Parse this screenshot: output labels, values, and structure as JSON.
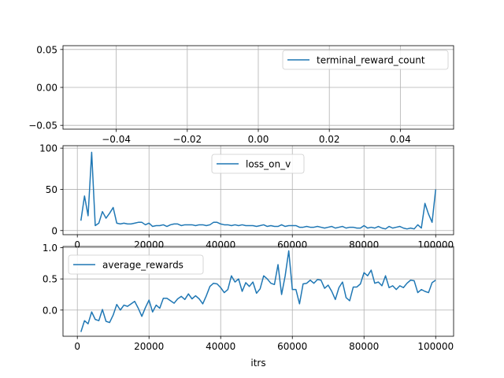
{
  "chart_data": [
    {
      "type": "line",
      "title": "",
      "xlabel": "",
      "ylabel": "",
      "xlim": [
        -0.055,
        0.055
      ],
      "ylim": [
        -0.055,
        0.055
      ],
      "xticks": [
        -0.04,
        -0.02,
        0.0,
        0.02,
        0.04
      ],
      "xtick_labels": [
        "−0.04",
        "−0.02",
        "0.00",
        "0.02",
        "0.04"
      ],
      "yticks": [
        -0.05,
        0.0,
        0.05
      ],
      "ytick_labels": [
        "−0.05",
        "0.00",
        "0.05"
      ],
      "grid": true,
      "legend_position": "upper right",
      "series": [
        {
          "name": "terminal_reward_count",
          "color": "#1f77b4",
          "x": [],
          "y": []
        }
      ]
    },
    {
      "type": "line",
      "title": "",
      "xlabel": "",
      "ylabel": "",
      "xlim": [
        -4000,
        105000
      ],
      "ylim": [
        -5,
        103
      ],
      "xticks": [
        0,
        20000,
        40000,
        60000,
        80000,
        100000
      ],
      "xtick_labels": [
        "0",
        "20000",
        "40000",
        "60000",
        "80000",
        "100000"
      ],
      "yticks": [
        0,
        50,
        100
      ],
      "ytick_labels": [
        "0",
        "50",
        "100"
      ],
      "grid": true,
      "legend_position": "upper center",
      "series": [
        {
          "name": "loss_on_v",
          "color": "#1f77b4",
          "x": [
            1000,
            2000,
            3000,
            4000,
            5000,
            6000,
            7000,
            8000,
            9000,
            10000,
            11000,
            12000,
            13000,
            14000,
            15000,
            16000,
            17000,
            18000,
            19000,
            20000,
            21000,
            22000,
            23000,
            24000,
            25000,
            26000,
            27000,
            28000,
            29000,
            30000,
            31000,
            32000,
            33000,
            34000,
            35000,
            36000,
            37000,
            38000,
            39000,
            40000,
            41000,
            42000,
            43000,
            44000,
            45000,
            46000,
            47000,
            48000,
            49000,
            50000,
            51000,
            52000,
            53000,
            54000,
            55000,
            56000,
            57000,
            58000,
            59000,
            60000,
            61000,
            62000,
            63000,
            64000,
            65000,
            66000,
            67000,
            68000,
            69000,
            70000,
            71000,
            72000,
            73000,
            74000,
            75000,
            76000,
            77000,
            78000,
            79000,
            80000,
            81000,
            82000,
            83000,
            84000,
            85000,
            86000,
            87000,
            88000,
            89000,
            90000,
            91000,
            92000,
            93000,
            94000,
            95000,
            96000,
            97000,
            98000,
            99000,
            100000
          ],
          "y": [
            12,
            42,
            18,
            95,
            6,
            9,
            23,
            15,
            21,
            28,
            9,
            8,
            9,
            8,
            8,
            9,
            10,
            10,
            7,
            9,
            5,
            6,
            6,
            7,
            5,
            7,
            8,
            8,
            6,
            7,
            7,
            7,
            6,
            7,
            7,
            6,
            7,
            10,
            10,
            8,
            7,
            7,
            6,
            7,
            6,
            7,
            6,
            6,
            6,
            5,
            6,
            7,
            5,
            6,
            5,
            5,
            7,
            5,
            6,
            6,
            6,
            4,
            4,
            5,
            4,
            4,
            5,
            4,
            3,
            4,
            5,
            3,
            4,
            5,
            3,
            4,
            4,
            3,
            3,
            6,
            3,
            4,
            3,
            5,
            3,
            2,
            5,
            3,
            4,
            5,
            3,
            2,
            3,
            2,
            7,
            3,
            33,
            20,
            10,
            50
          ]
        }
      ]
    },
    {
      "type": "line",
      "title": "",
      "xlabel": "itrs",
      "ylabel": "",
      "xlim": [
        -4000,
        105000
      ],
      "ylim": [
        -0.42,
        1.02
      ],
      "xticks": [
        0,
        20000,
        40000,
        60000,
        80000,
        100000
      ],
      "xtick_labels": [
        "0",
        "20000",
        "40000",
        "60000",
        "80000",
        "100000"
      ],
      "yticks": [
        0.0,
        0.5,
        1.0
      ],
      "ytick_labels": [
        "0.0",
        "0.5",
        "1.0"
      ],
      "grid": true,
      "legend_position": "upper left",
      "series": [
        {
          "name": "average_rewards",
          "color": "#1f77b4",
          "x": [
            1000,
            2000,
            3000,
            4000,
            5000,
            6000,
            7000,
            8000,
            9000,
            10000,
            11000,
            12000,
            13000,
            14000,
            15000,
            16000,
            17000,
            18000,
            19000,
            20000,
            21000,
            22000,
            23000,
            24000,
            25000,
            26000,
            27000,
            28000,
            29000,
            30000,
            31000,
            32000,
            33000,
            34000,
            35000,
            36000,
            37000,
            38000,
            39000,
            40000,
            41000,
            42000,
            43000,
            44000,
            45000,
            46000,
            47000,
            48000,
            49000,
            50000,
            51000,
            52000,
            53000,
            54000,
            55000,
            56000,
            57000,
            58000,
            59000,
            60000,
            61000,
            62000,
            63000,
            64000,
            65000,
            66000,
            67000,
            68000,
            69000,
            70000,
            71000,
            72000,
            73000,
            74000,
            75000,
            76000,
            77000,
            78000,
            79000,
            80000,
            81000,
            82000,
            83000,
            84000,
            85000,
            86000,
            87000,
            88000,
            89000,
            90000,
            91000,
            92000,
            93000,
            94000,
            95000,
            96000,
            97000,
            98000,
            99000,
            100000
          ],
          "y": [
            -0.35,
            -0.17,
            -0.22,
            -0.03,
            -0.15,
            -0.17,
            0.01,
            -0.18,
            -0.2,
            -0.08,
            0.09,
            0.0,
            0.08,
            0.06,
            0.1,
            0.14,
            0.03,
            -0.1,
            0.04,
            0.16,
            -0.03,
            0.08,
            0.03,
            0.19,
            0.19,
            0.15,
            0.11,
            0.18,
            0.22,
            0.17,
            0.26,
            0.18,
            0.23,
            0.18,
            0.1,
            0.23,
            0.38,
            0.43,
            0.42,
            0.36,
            0.28,
            0.33,
            0.55,
            0.45,
            0.5,
            0.3,
            0.44,
            0.38,
            0.45,
            0.27,
            0.34,
            0.55,
            0.5,
            0.43,
            0.41,
            0.73,
            0.25,
            0.55,
            0.95,
            0.33,
            0.33,
            0.1,
            0.42,
            0.43,
            0.48,
            0.43,
            0.49,
            0.48,
            0.35,
            0.4,
            0.3,
            0.17,
            0.36,
            0.45,
            0.2,
            0.15,
            0.37,
            0.37,
            0.42,
            0.6,
            0.55,
            0.64,
            0.43,
            0.45,
            0.39,
            0.55,
            0.36,
            0.39,
            0.33,
            0.39,
            0.36,
            0.43,
            0.48,
            0.47,
            0.28,
            0.33,
            0.3,
            0.28,
            0.44,
            0.48
          ]
        }
      ]
    }
  ]
}
